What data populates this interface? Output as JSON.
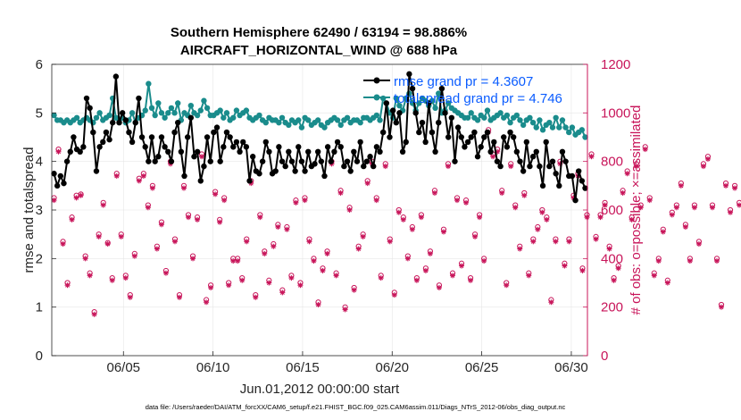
{
  "chart_data": {
    "type": "line",
    "title_line1": "Southern Hemisphere 62490 / 63194 = 98.886%",
    "title_line2": "AIRCRAFT_HORIZONTAL_WIND @ 688 hPa",
    "xlabel": "Jun.01,2012 00:00:00 start",
    "ylabel": "rmse and totalspread",
    "ylabel_right": "# of obs: o=possible; ×=assimilated",
    "footnote": "data file: /Users/raeder/DAI/ATM_forcXX/CAM6_setup/f.e21.FHIST_BGC.f09_025.CAM6assim.011/Diags_NTrS_2012-06/obs_diag_output.nc",
    "xlim": [
      1,
      30.9
    ],
    "ylim": [
      0,
      6
    ],
    "ylim_right": [
      0,
      1200
    ],
    "xticks": [
      5,
      10,
      15,
      20,
      25,
      30
    ],
    "xtick_labels": [
      "06/05",
      "06/10",
      "06/15",
      "06/20",
      "06/25",
      "06/30"
    ],
    "yticks": [
      "0",
      "1",
      "2",
      "3",
      "4",
      "5",
      "6"
    ],
    "yticks_right": [
      "0",
      "200",
      "400",
      "600",
      "800",
      "1000",
      "1200"
    ],
    "grid": true,
    "legend_position": "top-right",
    "series": [
      {
        "name": "rmse",
        "legend": "rmse   grand pr = 4.3607",
        "color": "#000000",
        "axis": "left",
        "values": [
          3.75,
          3.5,
          3.7,
          3.55,
          4.0,
          4.2,
          4.5,
          4.25,
          4.2,
          4.3,
          5.3,
          5.1,
          4.6,
          3.8,
          4.3,
          4.4,
          4.6,
          4.45,
          4.8,
          5.75,
          4.8,
          5.0,
          4.85,
          4.6,
          4.4,
          4.8,
          5.3,
          4.5,
          4.3,
          4.0,
          4.5,
          4.0,
          4.1,
          4.5,
          4.3,
          4.2,
          4.0,
          4.6,
          4.8,
          4.2,
          3.7,
          4.5,
          4.9,
          4.1,
          4.2,
          3.6,
          3.9,
          4.5,
          4.0,
          4.6,
          4.7,
          4.0,
          4.3,
          4.6,
          4.5,
          4.3,
          4.4,
          4.2,
          4.4,
          4.3,
          3.6,
          4.1,
          3.8,
          3.75,
          4.0,
          4.4,
          4.2,
          3.75,
          3.8,
          4.3,
          4.0,
          3.9,
          4.2,
          4.0,
          3.8,
          4.3,
          4.0,
          3.8,
          4.2,
          3.9,
          3.95,
          4.2,
          4.0,
          3.7,
          4.3,
          4.0,
          4.2,
          4.4,
          4.3,
          3.9,
          4.0,
          3.8,
          4.2,
          4.0,
          4.4,
          3.9,
          4.0,
          4.1,
          3.9,
          4.3,
          4.2,
          4.6,
          5.2,
          4.5,
          5.05,
          4.8,
          5.0,
          4.2,
          4.4,
          5.8,
          5.5,
          5.0,
          4.6,
          4.8,
          4.4,
          5.2,
          4.6,
          4.2,
          4.8,
          5.5,
          5.0,
          4.5,
          4.9,
          4.0,
          4.7,
          4.5,
          4.3,
          4.4,
          4.5,
          4.6,
          4.1,
          4.3,
          4.5,
          4.6,
          4.2,
          4.4,
          4.0,
          3.9,
          4.5,
          4.3,
          4.6,
          4.5,
          4.2,
          4.0,
          3.8,
          4.4,
          3.9,
          4.1,
          4.2,
          3.9,
          3.5,
          4.4,
          3.9,
          4.0,
          3.75,
          3.5,
          4.2,
          4.0,
          3.7,
          3.7,
          3.2,
          3.8,
          3.6,
          3.45
        ]
      },
      {
        "name": "totalspread",
        "legend": "totalspread grand pr = 4.746",
        "color": "#1a8c8c",
        "axis": "left",
        "values": [
          4.95,
          4.85,
          4.85,
          4.8,
          4.85,
          4.8,
          4.85,
          4.9,
          4.8,
          4.85,
          4.9,
          4.85,
          4.8,
          4.9,
          5.0,
          4.85,
          4.9,
          4.95,
          5.3,
          4.9,
          4.85,
          4.9,
          4.8,
          4.85,
          5.0,
          4.8,
          4.9,
          4.95,
          5.05,
          5.6,
          5.1,
          4.95,
          5.2,
          5.0,
          4.9,
          5.0,
          5.1,
          5.0,
          5.2,
          4.85,
          5.0,
          4.95,
          5.15,
          5.0,
          4.95,
          5.05,
          5.25,
          5.1,
          4.95,
          4.95,
          5.0,
          5.05,
          4.9,
          5.0,
          4.85,
          4.9,
          5.05,
          4.95,
          5.0,
          5.05,
          4.9,
          4.85,
          4.9,
          4.95,
          4.85,
          4.8,
          4.9,
          4.85,
          4.85,
          4.8,
          4.9,
          4.8,
          4.75,
          4.85,
          4.8,
          4.85,
          4.7,
          4.9,
          4.85,
          4.75,
          4.8,
          4.85,
          4.75,
          4.7,
          4.8,
          4.85,
          4.9,
          4.85,
          4.75,
          4.85,
          4.9,
          4.8,
          4.85,
          4.85,
          4.8,
          4.9,
          4.9,
          4.85,
          4.9,
          4.95,
          4.85,
          5.3,
          5.2,
          5.0,
          4.9,
          5.3,
          5.15,
          5.05,
          5.3,
          5.4,
          5.2,
          5.05,
          5.2,
          5.3,
          5.25,
          5.15,
          5.25,
          5.1,
          5.4,
          5.0,
          5.05,
          5.2,
          5.1,
          5.05,
          5.0,
          4.95,
          4.9,
          4.9,
          5.0,
          4.9,
          4.85,
          4.95,
          4.9,
          5.05,
          4.85,
          4.9,
          4.95,
          5.0,
          4.9,
          4.95,
          4.8,
          4.9,
          4.95,
          4.85,
          4.75,
          4.85,
          4.9,
          4.8,
          4.7,
          4.85,
          4.65,
          4.75,
          4.8,
          4.7,
          4.9,
          4.7,
          4.85,
          4.7,
          4.6,
          4.7,
          4.55,
          4.6,
          4.65,
          4.5
        ]
      },
      {
        "name": "possible",
        "color": "#c8155a",
        "axis": "right",
        "marker": "o",
        "values": [
          650,
          850,
          470,
          300,
          570,
          660,
          665,
          410,
          340,
          180,
          500,
          630,
          465,
          320,
          750,
          500,
          330,
          250,
          420,
          730,
          750,
          620,
          700,
          450,
          550,
          350,
          800,
          480,
          250,
          700,
          580,
          410,
          570,
          830,
          230,
          290,
          675,
          560,
          650,
          300,
          400,
          400,
          320,
          480,
          720,
          250,
          580,
          430,
          310,
          460,
          540,
          270,
          530,
          330,
          640,
          300,
          650,
          480,
          400,
          220,
          360,
          430,
          800,
          340,
          680,
          200,
          610,
          280,
          450,
          500,
          720,
          800,
          650,
          330,
          790,
          480,
          260,
          600,
          570,
          410,
          530,
          320,
          580,
          360,
          430,
          680,
          290,
          520,
          790,
          340,
          650,
          380,
          640,
          320,
          500,
          580,
          400,
          930,
          830,
          850,
          680,
          300,
          790,
          620,
          450,
          670,
          340,
          480,
          530,
          600,
          570,
          230,
          480,
          800,
          380,
          480,
          660,
          750,
          360,
          580,
          830,
          490,
          580,
          630,
          450,
          320,
          370,
          680,
          760,
          570,
          790,
          620,
          860,
          650,
          340,
          400,
          520,
          310,
          590,
          620,
          710,
          540,
          400,
          620,
          470,
          790,
          820,
          620,
          400,
          210,
          710,
          600,
          700,
          630,
          560,
          620,
          410,
          390,
          210,
          450,
          710,
          600,
          850,
          400,
          520,
          180,
          640,
          670
        ]
      },
      {
        "name": "assimilated",
        "color": "#c8155a",
        "axis": "right",
        "marker": "x",
        "values": [
          640,
          840,
          460,
          290,
          560,
          650,
          660,
          400,
          330,
          170,
          490,
          620,
          460,
          310,
          740,
          490,
          320,
          240,
          410,
          720,
          740,
          610,
          690,
          440,
          540,
          340,
          790,
          470,
          240,
          690,
          570,
          400,
          560,
          820,
          220,
          280,
          665,
          550,
          640,
          290,
          390,
          390,
          310,
          470,
          710,
          240,
          570,
          420,
          300,
          450,
          530,
          260,
          520,
          320,
          630,
          290,
          640,
          470,
          390,
          210,
          350,
          420,
          790,
          330,
          670,
          190,
          600,
          270,
          440,
          490,
          710,
          790,
          640,
          320,
          780,
          470,
          250,
          590,
          560,
          400,
          520,
          310,
          570,
          350,
          420,
          670,
          280,
          510,
          780,
          330,
          640,
          370,
          630,
          310,
          490,
          570,
          390,
          920,
          820,
          840,
          670,
          290,
          780,
          610,
          440,
          660,
          330,
          470,
          520,
          590,
          560,
          220,
          470,
          790,
          370,
          470,
          650,
          740,
          350,
          570,
          820,
          480,
          570,
          620,
          440,
          310,
          360,
          670,
          750,
          560,
          780,
          610,
          850,
          640,
          330,
          390,
          510,
          300,
          580,
          610,
          700,
          530,
          390,
          610,
          460,
          780,
          810,
          610,
          390,
          200,
          700,
          590,
          690,
          620,
          550,
          610,
          400,
          380,
          200,
          440,
          700,
          590,
          840,
          390,
          510,
          170,
          630,
          660
        ]
      }
    ]
  }
}
